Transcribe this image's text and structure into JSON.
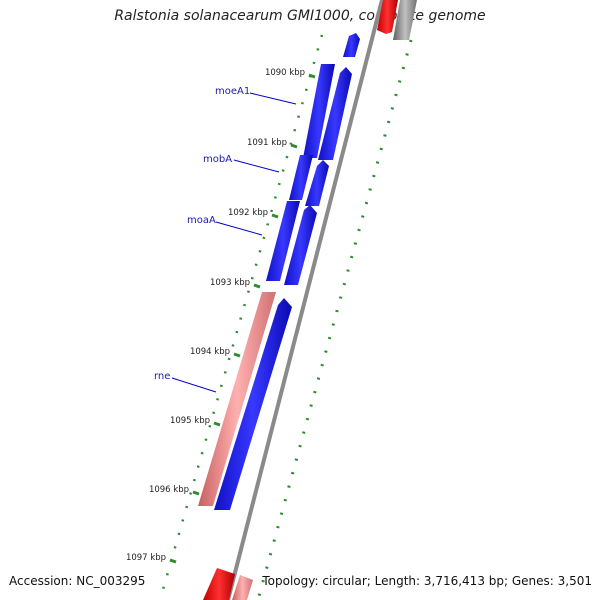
{
  "title": "Ralstonia solanacearum GMI1000, complete genome",
  "accession_text": "Accession: NC_003295",
  "topology_text": "Topology: circular; Length: 3,716,413 bp; Genes: 3,501",
  "colors": {
    "forward_gene": "#1010e0",
    "reverse_gene": "#e88080",
    "backbone": "#888888",
    "tick": "#2e8b2e",
    "label": "#1a1ab0"
  },
  "ruler": {
    "unit": "kbp",
    "labels": [
      "1090 kbp",
      "1091 kbp",
      "1092 kbp",
      "1093 kbp",
      "1094 kbp",
      "1095 kbp",
      "1096 kbp",
      "1097 kbp"
    ]
  },
  "genes": [
    {
      "name": "moeA1",
      "strand": "+",
      "start_kbp": 1089.5,
      "end_kbp": 1090.6
    },
    {
      "name": "mobA",
      "strand": "+",
      "start_kbp": 1090.6,
      "end_kbp": 1091.2
    },
    {
      "name": "moaA",
      "strand": "+",
      "start_kbp": 1091.2,
      "end_kbp": 1092.7
    },
    {
      "name": "rne",
      "strand": "-",
      "start_kbp": 1093.0,
      "end_kbp": 1096.2
    }
  ]
}
